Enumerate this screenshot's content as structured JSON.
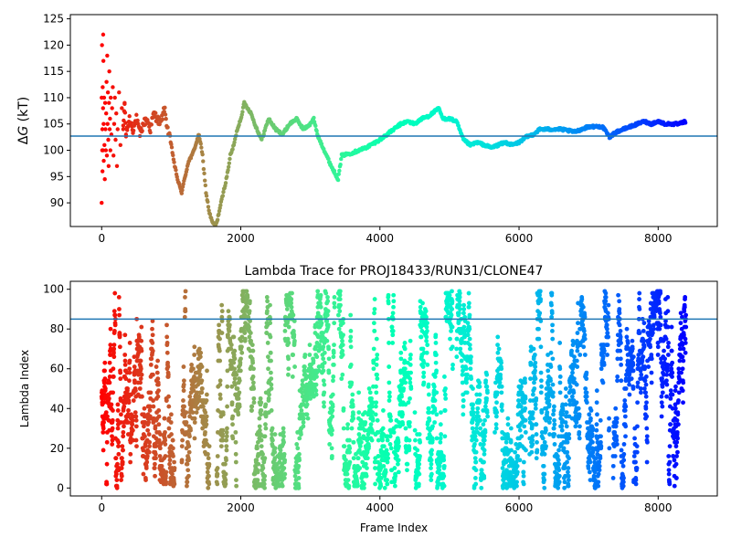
{
  "chart_data": [
    {
      "type": "scatter",
      "title": "",
      "xlabel": "",
      "ylabel": "ΔG (kT)",
      "ylabel_italic_part": "G",
      "xlim": [
        -450,
        8850
      ],
      "ylim": [
        85.5,
        125.8
      ],
      "xticks": [
        0,
        2000,
        4000,
        6000,
        8000
      ],
      "yticks": [
        90,
        95,
        100,
        105,
        110,
        115,
        120,
        125
      ],
      "colormap": "rainbow (reversed: red at frame 0, violet at last frame)",
      "hline": {
        "y": 102.7,
        "color": "#1f77b4"
      },
      "series": [
        {
          "name": "",
          "description": "running free-energy estimate per frame, colored by frame index",
          "points": [
            [
              0,
              90
            ],
            [
              0,
              110
            ],
            [
              5,
              120
            ],
            [
              8,
              100
            ],
            [
              10,
              104
            ],
            [
              12,
              96
            ],
            [
              15,
              112
            ],
            [
              18,
              100
            ],
            [
              20,
              108
            ],
            [
              22,
              122
            ],
            [
              25,
              117
            ],
            [
              28,
              105
            ],
            [
              30,
              98
            ],
            [
              35,
              110
            ],
            [
              40,
              101
            ],
            [
              45,
              94.5
            ],
            [
              50,
              109
            ],
            [
              55,
              104
            ],
            [
              60,
              100
            ],
            [
              65,
              107
            ],
            [
              70,
              113
            ],
            [
              75,
              99
            ],
            [
              80,
              118
            ],
            [
              85,
              105
            ],
            [
              90,
              111
            ],
            [
              95,
              102
            ],
            [
              100,
              97
            ],
            [
              105,
              109
            ],
            [
              110,
              115
            ],
            [
              115,
              104
            ],
            [
              120,
              106
            ],
            [
              125,
              100
            ],
            [
              130,
              110
            ],
            [
              140,
              103
            ],
            [
              150,
              108
            ],
            [
              160,
              112
            ],
            [
              170,
              99
            ],
            [
              180,
              105
            ],
            [
              190,
              110
            ],
            [
              200,
              102
            ],
            [
              210,
              107
            ],
            [
              220,
              97
            ],
            [
              230,
              104
            ],
            [
              250,
              111
            ],
            [
              270,
              101
            ],
            [
              290,
              108
            ],
            [
              310,
              104
            ],
            [
              330,
              109
            ],
            [
              350,
              103
            ],
            [
              400,
              106
            ],
            [
              450,
              104
            ],
            [
              500,
              106
            ],
            [
              550,
              103
            ],
            [
              600,
              105
            ],
            [
              650,
              106
            ],
            [
              700,
              104
            ],
            [
              750,
              107
            ],
            [
              800,
              106
            ],
            [
              850,
              105
            ],
            [
              900,
              108
            ],
            [
              950,
              104
            ],
            [
              1000,
              101
            ],
            [
              1050,
              97
            ],
            [
              1100,
              94
            ],
            [
              1150,
              92
            ],
            [
              1200,
              95
            ],
            [
              1250,
              98
            ],
            [
              1300,
              99
            ],
            [
              1350,
              101
            ],
            [
              1400,
              103
            ],
            [
              1450,
              99
            ],
            [
              1500,
              92
            ],
            [
              1550,
              88
            ],
            [
              1600,
              86
            ],
            [
              1650,
              86
            ],
            [
              1700,
              89
            ],
            [
              1750,
              92
            ],
            [
              1800,
              95
            ],
            [
              1850,
              99
            ],
            [
              1900,
              101
            ],
            [
              1950,
              104
            ],
            [
              2000,
              106
            ],
            [
              2050,
              109
            ],
            [
              2100,
              108
            ],
            [
              2150,
              107
            ],
            [
              2200,
              105
            ],
            [
              2300,
              102
            ],
            [
              2400,
              106
            ],
            [
              2500,
              104
            ],
            [
              2600,
              103
            ],
            [
              2700,
              105
            ],
            [
              2800,
              106
            ],
            [
              2900,
              104
            ],
            [
              3000,
              105
            ],
            [
              3050,
              106
            ],
            [
              3100,
              103
            ],
            [
              3200,
              100
            ],
            [
              3300,
              97
            ],
            [
              3400,
              94.5
            ],
            [
              3450,
              99
            ],
            [
              3600,
              99.5
            ],
            [
              3800,
              100.5
            ],
            [
              4000,
              102
            ],
            [
              4100,
              103
            ],
            [
              4200,
              104
            ],
            [
              4300,
              105
            ],
            [
              4400,
              105.5
            ],
            [
              4500,
              105
            ],
            [
              4600,
              106
            ],
            [
              4700,
              106.5
            ],
            [
              4800,
              107.5
            ],
            [
              4850,
              108
            ],
            [
              4900,
              106
            ],
            [
              5000,
              106
            ],
            [
              5100,
              105.5
            ],
            [
              5200,
              102
            ],
            [
              5300,
              101
            ],
            [
              5400,
              101.5
            ],
            [
              5500,
              101
            ],
            [
              5600,
              100.5
            ],
            [
              5700,
              101
            ],
            [
              5800,
              101.5
            ],
            [
              5900,
              101
            ],
            [
              6000,
              101.5
            ],
            [
              6100,
              102.5
            ],
            [
              6200,
              103
            ],
            [
              6300,
              104
            ],
            [
              6400,
              104
            ],
            [
              6500,
              104
            ],
            [
              6600,
              104
            ],
            [
              6800,
              103.5
            ],
            [
              7000,
              104.5
            ],
            [
              7200,
              104.5
            ],
            [
              7300,
              102.5
            ],
            [
              7400,
              103.5
            ],
            [
              7500,
              104
            ],
            [
              7600,
              104.5
            ],
            [
              7700,
              105
            ],
            [
              7800,
              105.5
            ],
            [
              7900,
              105
            ],
            [
              8000,
              105.5
            ],
            [
              8100,
              105
            ],
            [
              8200,
              105
            ],
            [
              8300,
              105
            ],
            [
              8400,
              105.5
            ]
          ]
        }
      ]
    },
    {
      "type": "scatter",
      "title": "Lambda Trace for PROJ18433/RUN31/CLONE47",
      "xlabel": "Frame Index",
      "ylabel": "Lambda Index",
      "xlim": [
        -450,
        8850
      ],
      "ylim": [
        -4,
        104
      ],
      "xticks": [
        0,
        2000,
        4000,
        6000,
        8000
      ],
      "yticks": [
        0,
        20,
        40,
        60,
        80,
        100
      ],
      "colormap": "rainbow (reversed: red at frame 0, violet at last frame)",
      "hline": {
        "y": 85,
        "color": "#1f77b4"
      },
      "series": [
        {
          "name": "",
          "description": "lambda window index visited at each frame (values 0–99), colored by frame index",
          "frame_range": [
            0,
            8400
          ],
          "lambda_range": [
            0,
            99
          ],
          "empty_gaps": [
            [
              1050,
              1150
            ],
            [
              1550,
              1650
            ],
            [
              3350,
              3400
            ],
            [
              4450,
              4500
            ],
            [
              5050,
              5100
            ],
            [
              5550,
              5650
            ],
            [
              6100,
              6150
            ],
            [
              7300,
              7350
            ]
          ]
        }
      ]
    }
  ]
}
